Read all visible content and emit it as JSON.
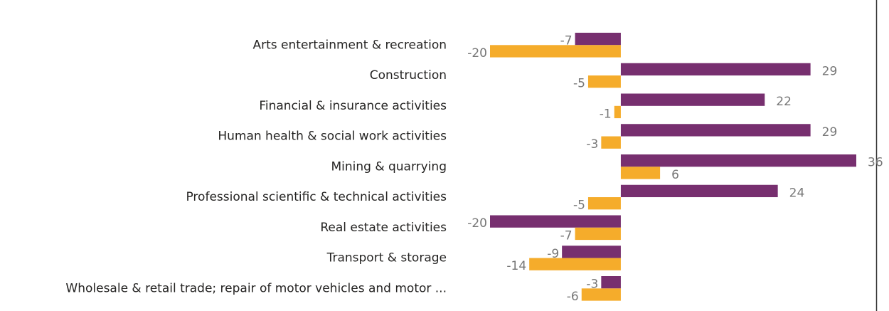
{
  "chart_data": {
    "type": "bar",
    "orientation": "horizontal",
    "categories": [
      "Arts entertainment & recreation",
      "Construction",
      "Financial & insurance activities",
      "Human health & social work activities",
      "Mining & quarrying",
      "Professional scientific & technical activities",
      "Real estate activities",
      "Transport & storage",
      "Wholesale & retail trade; repair of motor vehicles and motor ..."
    ],
    "series": [
      {
        "color": "#772f6f",
        "values": [
          -7,
          29,
          22,
          29,
          36,
          24,
          -20,
          -9,
          -3
        ]
      },
      {
        "color": "#f5ac2b",
        "values": [
          -20,
          -5,
          -1,
          -3,
          6,
          -5,
          -7,
          -14,
          -6
        ]
      }
    ]
  }
}
